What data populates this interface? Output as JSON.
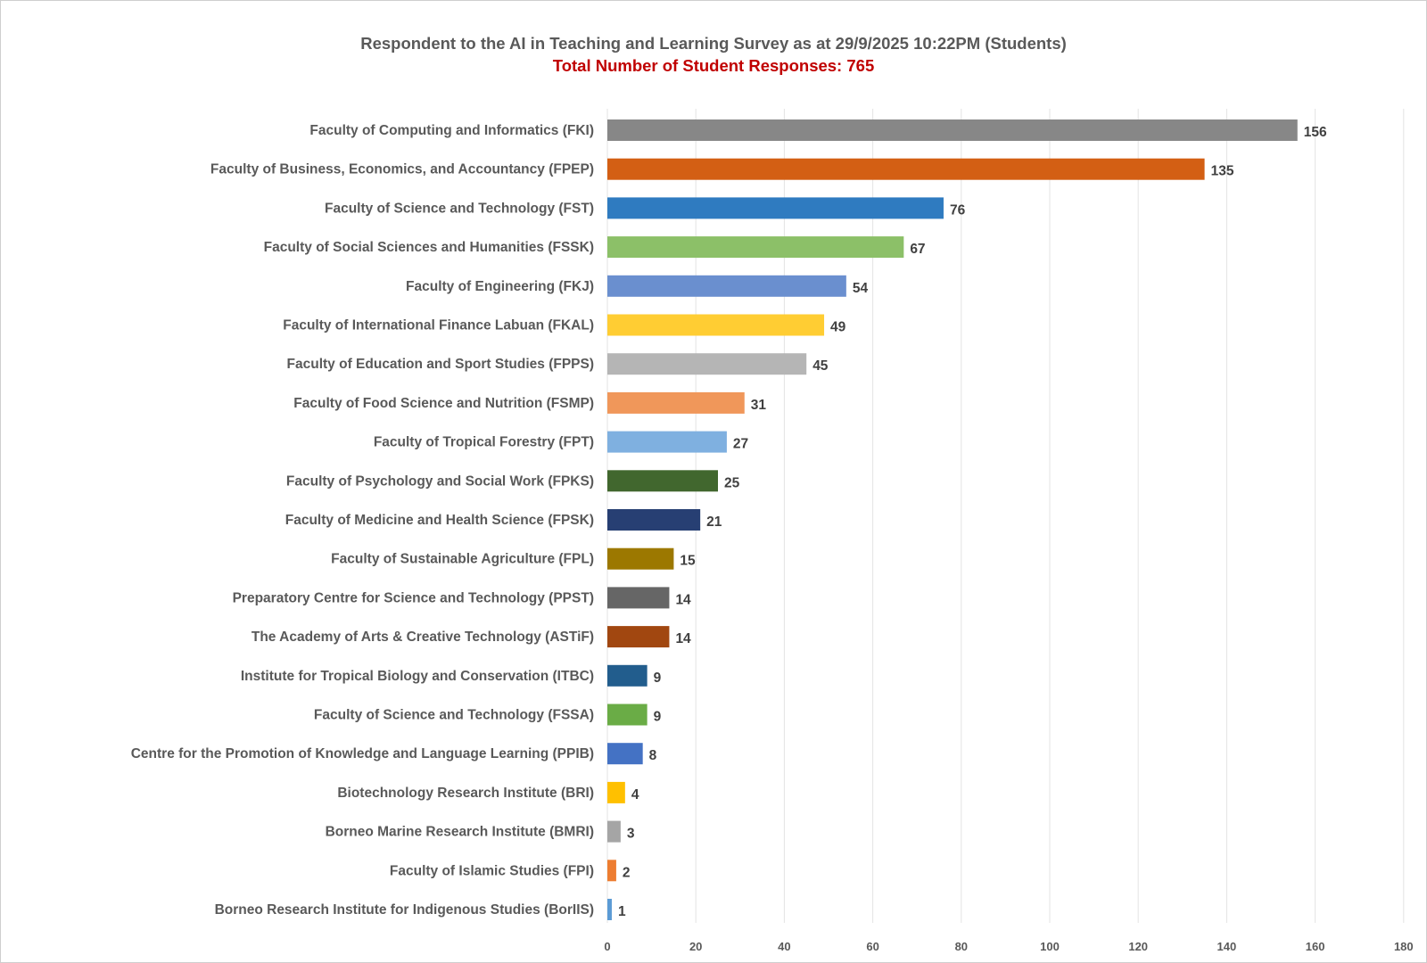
{
  "chart_data": {
    "type": "bar",
    "orientation": "horizontal",
    "title": "Respondent to the AI in Teaching and Learning Survey as at 29/9/2025 10:22PM (Students)",
    "subtitle": "Total Number of Student Responses: 765",
    "categories": [
      "Faculty of Computing and Informatics (FKI)",
      "Faculty of Business, Economics, and Accountancy (FPEP)",
      "Faculty of Science and Technology (FST)",
      "Faculty of Social Sciences and Humanities (FSSK)",
      "Faculty of Engineering (FKJ)",
      "Faculty of International Finance Labuan (FKAL)",
      "Faculty of Education and Sport Studies (FPPS)",
      "Faculty of Food Science and Nutrition (FSMP)",
      "Faculty of Tropical Forestry (FPT)",
      "Faculty of Psychology and Social Work (FPKS)",
      "Faculty of Medicine and Health Science (FPSK)",
      "Faculty of Sustainable Agriculture (FPL)",
      "Preparatory Centre for Science and Technology (PPST)",
      "The Academy of Arts & Creative Technology (ASTiF)",
      "Institute for Tropical Biology and Conservation (ITBC)",
      "Faculty of Science and Technology (FSSA)",
      "Centre for the Promotion of Knowledge and Language Learning (PPIB)",
      "Biotechnology Research Institute (BRI)",
      "Borneo Marine Research Institute (BMRI)",
      "Faculty of Islamic Studies (FPI)",
      "Borneo Research Institute for Indigenous Studies (BorIIS)"
    ],
    "values": [
      156,
      135,
      76,
      67,
      54,
      49,
      45,
      31,
      27,
      25,
      21,
      15,
      14,
      14,
      9,
      9,
      8,
      4,
      3,
      2,
      1
    ],
    "colors": [
      "#878787",
      "#d35f14",
      "#2f7bc0",
      "#8cc068",
      "#6a8fcf",
      "#ffcd33",
      "#b5b5b5",
      "#f0975a",
      "#7fb0e0",
      "#41672e",
      "#273f73",
      "#9c7800",
      "#666666",
      "#a14710",
      "#225d8d",
      "#6aac46",
      "#4472c4",
      "#ffc000",
      "#a5a5a5",
      "#ed7d31",
      "#5b9bd5"
    ],
    "xlim": [
      0,
      180
    ],
    "xticks": [
      0,
      20,
      40,
      60,
      80,
      100,
      120,
      140,
      160,
      180
    ],
    "grid": true,
    "data_labels": true,
    "title_color": "#595959",
    "subtitle_color": "#c00000"
  }
}
